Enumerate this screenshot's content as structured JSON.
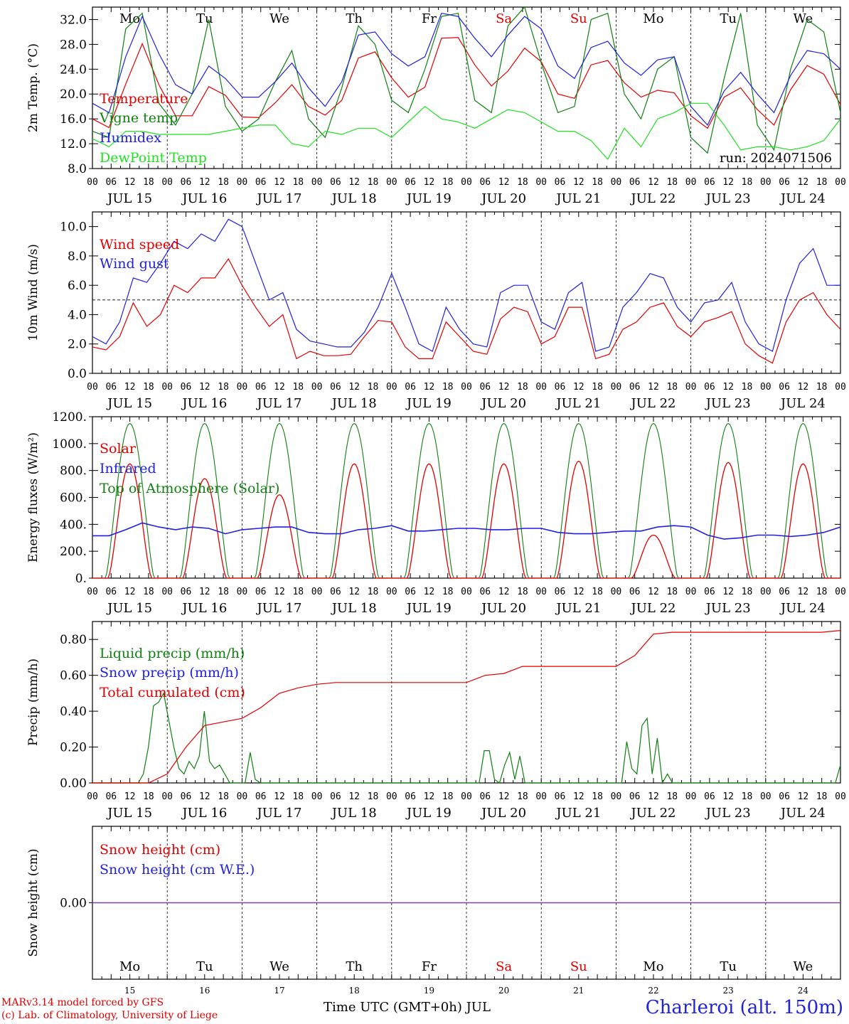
{
  "days": {
    "names": [
      "Mo",
      "Tu",
      "We",
      "Th",
      "Fr",
      "Sa",
      "Su",
      "Mo",
      "Tu",
      "We"
    ],
    "weekend_color": "#e00000",
    "weekend_indices": [
      5,
      6
    ],
    "dates": [
      "JUL 15",
      "JUL 16",
      "JUL 17",
      "JUL 18",
      "JUL 19",
      "JUL 20",
      "JUL 21",
      "JUL 22",
      "JUL 23",
      "JUL 24"
    ],
    "day_numbers": [
      "15",
      "16",
      "17",
      "18",
      "19",
      "20",
      "21",
      "22",
      "23",
      "24"
    ],
    "hour_ticks": [
      "00",
      "06",
      "12",
      "18"
    ],
    "end_hour_label": "00"
  },
  "footer": {
    "credit_line1": "MARv3.14 model forced by GFS",
    "credit_line2": "(c) Lab. of Climatology, University of Liege",
    "x_title": "Time UTC (GMT+0h) JUL",
    "station": "Charleroi (alt. 150m)"
  },
  "colors": {
    "red": "#e00000",
    "blue": "#2020e0",
    "green": "#108010",
    "lightgreen": "#20e020",
    "purple": "#8040a0"
  },
  "chart_data": [
    {
      "id": "temperature",
      "type": "line",
      "ylabel": "2m Temp. (°C)",
      "ylim": [
        8,
        34
      ],
      "yticks": [
        "8.0",
        "12.0",
        "16.0",
        "20.0",
        "24.0",
        "28.0",
        "32.0"
      ],
      "ytick_values": [
        8,
        12,
        16,
        20,
        24,
        28,
        32
      ],
      "annotation": "run: 2024071506",
      "show_day_names": true,
      "x_step_hours": 6,
      "series": [
        {
          "name": "Temperature",
          "color": "#e00000",
          "values": [
            16.0,
            14.6,
            21.6,
            28.1,
            21.5,
            16.5,
            16.5,
            21.2,
            19.8,
            16.3,
            16.2,
            18.6,
            21.5,
            18.0,
            16.6,
            19.0,
            25.8,
            26.8,
            22.6,
            19.5,
            21.1,
            29.0,
            29.1,
            24.7,
            21.3,
            23.7,
            27.4,
            25.2,
            20.0,
            19.3,
            24.7,
            25.4,
            21.8,
            19.5,
            20.6,
            20.2,
            16.5,
            14.5,
            19.5,
            21.0,
            17.5,
            15.0,
            20.7,
            24.6,
            23.2,
            18.3
          ]
        },
        {
          "name": "Vigne temp",
          "color": "#108010",
          "values": [
            14.0,
            13.0,
            30.5,
            33.0,
            18.5,
            15.0,
            20.0,
            32.0,
            18.0,
            14.0,
            16.0,
            22.0,
            27.0,
            16.0,
            13.0,
            21.0,
            31.0,
            28.0,
            19.0,
            17.0,
            24.0,
            32.5,
            33.0,
            19.0,
            17.0,
            31.0,
            34.0,
            25.0,
            17.0,
            18.0,
            32.0,
            33.0,
            20.0,
            16.0,
            24.0,
            26.0,
            13.0,
            10.5,
            22.5,
            33.0,
            15.0,
            11.0,
            24.0,
            32.0,
            30.0,
            17.0
          ]
        },
        {
          "name": "Humidex",
          "color": "#2020e0",
          "values": [
            18.5,
            17.0,
            26.0,
            32.5,
            26.5,
            21.5,
            20.0,
            24.5,
            22.5,
            19.5,
            19.5,
            22.0,
            25.0,
            21.0,
            18.0,
            22.0,
            29.5,
            30.0,
            26.5,
            24.5,
            26.0,
            33.0,
            32.5,
            29.0,
            26.0,
            29.5,
            32.5,
            30.5,
            24.5,
            22.5,
            27.5,
            28.5,
            25.0,
            23.0,
            25.5,
            26.0,
            18.0,
            15.0,
            20.5,
            23.5,
            20.0,
            17.0,
            23.0,
            27.0,
            26.5,
            24.0
          ]
        },
        {
          "name": "DewPoint Temp",
          "color": "#20e020",
          "values": [
            12.8,
            11.5,
            14.0,
            14.0,
            13.5,
            13.5,
            13.5,
            13.5,
            14.0,
            14.5,
            15.0,
            15.0,
            12.0,
            11.5,
            14.0,
            13.5,
            14.5,
            14.5,
            13.0,
            15.5,
            18.0,
            16.0,
            15.5,
            14.5,
            16.0,
            17.5,
            17.0,
            15.5,
            14.0,
            14.0,
            12.5,
            9.5,
            14.5,
            11.5,
            16.0,
            17.0,
            18.5,
            18.5,
            15.0,
            11.0,
            11.5,
            11.5,
            11.0,
            11.5,
            12.5,
            16.0
          ]
        }
      ]
    },
    {
      "id": "wind",
      "type": "line",
      "ylabel": "10m Wind (m/s)",
      "ylim": [
        0,
        11
      ],
      "yticks": [
        "0.0",
        "2.0",
        "4.0",
        "6.0",
        "8.0",
        "10.0"
      ],
      "ytick_values": [
        0,
        2,
        4,
        6,
        8,
        10
      ],
      "reference_line": 5,
      "x_step_hours": 6,
      "series": [
        {
          "name": "Wind speed",
          "color": "#e00000",
          "values": [
            1.8,
            1.6,
            2.5,
            4.8,
            3.2,
            4.0,
            6.0,
            5.5,
            6.5,
            6.5,
            7.8,
            6.0,
            4.5,
            3.2,
            4.0,
            1.0,
            1.5,
            1.2,
            1.2,
            1.3,
            2.5,
            3.6,
            3.5,
            1.8,
            1.0,
            1.0,
            3.5,
            2.5,
            1.5,
            1.3,
            3.7,
            4.5,
            4.2,
            2.0,
            2.5,
            4.5,
            4.5,
            1.0,
            1.3,
            3.0,
            3.5,
            4.5,
            4.8,
            3.2,
            2.5,
            3.5,
            3.8,
            4.2,
            2.0,
            1.2,
            0.7,
            3.5,
            5.0,
            5.5,
            4.0,
            3.0
          ]
        },
        {
          "name": "Wind gust",
          "color": "#2020e0",
          "values": [
            2.5,
            2.0,
            3.5,
            6.5,
            6.2,
            7.5,
            9.0,
            8.5,
            9.5,
            9.0,
            10.5,
            10.0,
            7.5,
            5.0,
            5.5,
            3.0,
            2.2,
            2.0,
            1.8,
            1.8,
            2.8,
            4.5,
            6.8,
            4.5,
            2.0,
            1.5,
            4.5,
            3.0,
            2.0,
            1.8,
            5.5,
            6.0,
            6.0,
            3.5,
            3.0,
            5.5,
            6.2,
            1.5,
            1.8,
            4.5,
            5.5,
            6.8,
            6.5,
            4.5,
            3.5,
            4.8,
            5.0,
            6.2,
            3.5,
            2.0,
            1.5,
            5.0,
            7.5,
            8.5,
            6.0,
            6.0
          ]
        }
      ]
    },
    {
      "id": "energy",
      "type": "line",
      "ylabel": "Energy fluxes (W/m²)",
      "ylim": [
        0,
        1200
      ],
      "yticks": [
        "0.",
        "200.",
        "400.",
        "600.",
        "800.",
        "1000.",
        "1200."
      ],
      "ytick_values": [
        0,
        200,
        400,
        600,
        800,
        1000,
        1200
      ],
      "series": [
        {
          "name": "Solar",
          "color": "#e00000",
          "peaks": [
            850,
            740,
            620,
            850,
            850,
            850,
            870,
            320,
            860,
            850
          ]
        },
        {
          "name": "Infrared",
          "color": "#2020e0",
          "values": [
            315,
            315,
            360,
            410,
            380,
            360,
            380,
            370,
            330,
            360,
            370,
            380,
            380,
            340,
            330,
            330,
            360,
            370,
            390,
            350,
            350,
            360,
            370,
            370,
            360,
            360,
            370,
            370,
            340,
            330,
            330,
            340,
            350,
            350,
            380,
            390,
            380,
            320,
            290,
            300,
            320,
            320,
            310,
            320,
            340,
            380
          ]
        },
        {
          "name": "Top of Atmosphere (Solar)",
          "color": "#108010",
          "peak": 1150
        }
      ]
    },
    {
      "id": "precip",
      "type": "line",
      "ylabel": "Precip (mm/h)",
      "ylim": [
        0,
        0.9
      ],
      "yticks": [
        "0.00",
        "0.20",
        "0.40",
        "0.60",
        "0.80"
      ],
      "ytick_values": [
        0,
        0.2,
        0.4,
        0.6,
        0.8
      ],
      "series": [
        {
          "name": "Liquid precip (mm/h)",
          "color": "#108010",
          "values": [
            0,
            0,
            0,
            0,
            0,
            0,
            0,
            0,
            0,
            0,
            0.05,
            0.2,
            0.43,
            0.45,
            0.5,
            0.35,
            0.2,
            0.08,
            0.05,
            0.12,
            0.08,
            0.15,
            0.4,
            0.12,
            0.08,
            0.1,
            0.05,
            0,
            0,
            0,
            0,
            0.17,
            0.02,
            0,
            0,
            0,
            0,
            0,
            0,
            0,
            0,
            0,
            0,
            0,
            0,
            0,
            0,
            0,
            0,
            0,
            0,
            0,
            0,
            0,
            0,
            0,
            0,
            0,
            0,
            0,
            0,
            0,
            0,
            0,
            0,
            0,
            0,
            0,
            0,
            0,
            0,
            0,
            0,
            0,
            0,
            0,
            0,
            0.18,
            0.18,
            0.02,
            0,
            0.1,
            0.17,
            0.02,
            0.15,
            0,
            0,
            0,
            0,
            0,
            0,
            0,
            0,
            0,
            0,
            0,
            0,
            0,
            0,
            0,
            0,
            0,
            0,
            0,
            0,
            0.23,
            0.08,
            0.05,
            0.32,
            0.36,
            0.05,
            0.25,
            0,
            0.05,
            0,
            0,
            0,
            0,
            0,
            0,
            0,
            0,
            0,
            0,
            0,
            0,
            0,
            0,
            0,
            0,
            0,
            0,
            0,
            0,
            0,
            0,
            0,
            0,
            0,
            0,
            0,
            0,
            0,
            0,
            0,
            0,
            0,
            0.1
          ]
        },
        {
          "name": "Snow precip (mm/h)",
          "color": "#2020e0",
          "values": []
        },
        {
          "name": "Total cumulated (cm)",
          "color": "#e00000",
          "values": [
            0,
            0,
            0,
            0,
            0.05,
            0.2,
            0.32,
            0.34,
            0.36,
            0.42,
            0.5,
            0.53,
            0.55,
            0.56,
            0.56,
            0.56,
            0.56,
            0.56,
            0.56,
            0.56,
            0.56,
            0.6,
            0.61,
            0.65,
            0.65,
            0.65,
            0.65,
            0.65,
            0.65,
            0.71,
            0.83,
            0.84,
            0.84,
            0.84,
            0.84,
            0.84,
            0.84,
            0.84,
            0.84,
            0.84,
            0.85
          ]
        }
      ]
    },
    {
      "id": "snow",
      "type": "line",
      "ylabel": "Snow height (cm)",
      "ylim": [
        -1,
        1
      ],
      "yticks": [
        "0.00"
      ],
      "ytick_values": [
        0
      ],
      "show_day_names": true,
      "series": [
        {
          "name": "Snow height (cm)",
          "color": "#e00000",
          "values": [
            0
          ]
        },
        {
          "name": "Snow height (cm W.E.)",
          "color": "#2020e0",
          "values": [
            0
          ]
        }
      ]
    }
  ]
}
